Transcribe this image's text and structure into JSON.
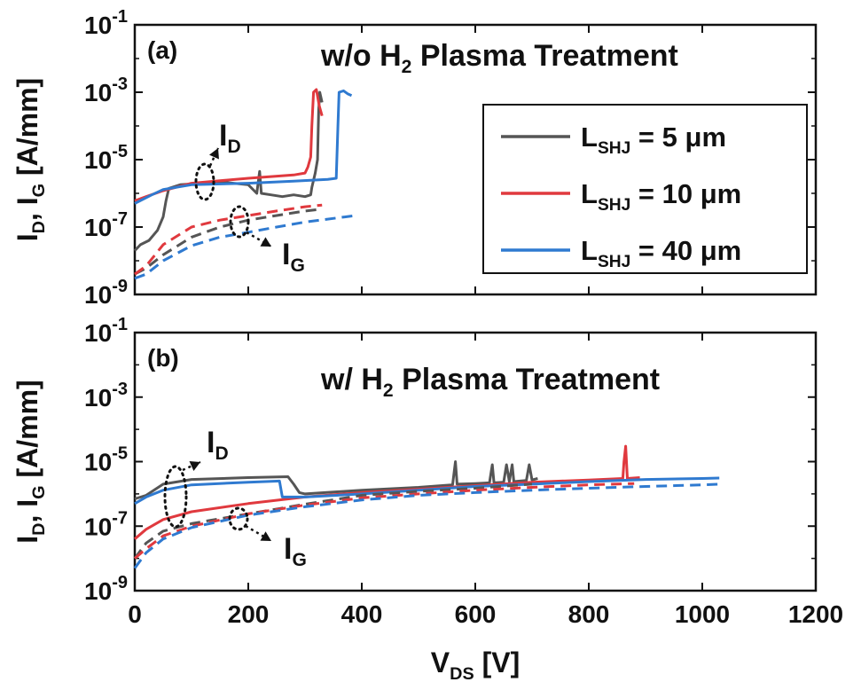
{
  "figure": {
    "x_label": {
      "main": "V",
      "sub": "DS",
      "rest": " [V]"
    },
    "y_label": [
      {
        "text": "I",
        "sub": false
      },
      {
        "text": "D",
        "sub": true
      },
      {
        "text": ", I",
        "sub": false
      },
      {
        "text": "G",
        "sub": true
      },
      {
        "text": " [A/mm]",
        "sub": false
      }
    ],
    "ytick_base": "10",
    "id_marker": {
      "main": "I",
      "sub": "D"
    },
    "ig_marker": {
      "main": "I",
      "sub": "G"
    },
    "legend_symbol": {
      "main": "L",
      "sub": "SHJ",
      "unit": "μm"
    }
  },
  "chart_data": [
    {
      "type": "line",
      "panel_label": "(a)",
      "title_parts": [
        "w/o H",
        "2",
        " Plasma Treatment"
      ],
      "xlim": [
        0,
        1200
      ],
      "ylim": [
        1e-09,
        0.1
      ],
      "yscale": "log",
      "xticks": [
        0,
        200,
        400,
        600,
        800,
        1000,
        1200
      ],
      "show_xtick_labels": false,
      "yticks": [
        {
          "value": 1e-09,
          "exp": "-9"
        },
        {
          "value": 1e-07,
          "exp": "-7"
        },
        {
          "value": 1e-05,
          "exp": "-5"
        },
        {
          "value": 0.001,
          "exp": "-3"
        },
        {
          "value": 0.1,
          "exp": "-1"
        }
      ],
      "legend": {
        "placement": "right",
        "entries": [
          {
            "value": "5",
            "color": "#555555"
          },
          {
            "value": "10",
            "color": "#e0393e"
          },
          {
            "value": "40",
            "color": "#2f7ad0"
          }
        ]
      },
      "series": [
        {
          "name": "I_D, L_SHJ = 5 μm",
          "color": "#555555",
          "style": "solid",
          "points": [
            [
              0,
              2e-08
            ],
            [
              10,
              3e-08
            ],
            [
              25,
              4e-08
            ],
            [
              40,
              8e-08
            ],
            [
              50,
              2e-07
            ],
            [
              55,
              6e-07
            ],
            [
              60,
              1.4e-06
            ],
            [
              80,
              1.8e-06
            ],
            [
              120,
              2e-06
            ],
            [
              160,
              2.1e-06
            ],
            [
              200,
              1.8e-06
            ],
            [
              215,
              1e-06
            ],
            [
              220,
              4.5e-06
            ],
            [
              223,
              1e-06
            ],
            [
              240,
              9e-07
            ],
            [
              260,
              8e-07
            ],
            [
              280,
              9e-07
            ],
            [
              300,
              8e-07
            ],
            [
              310,
              9e-07
            ],
            [
              312,
              1.5e-06
            ],
            [
              318,
              4e-06
            ],
            [
              322,
              1e-05
            ],
            [
              324,
              0.0003
            ],
            [
              326,
              0.001
            ],
            [
              330,
              0.0005
            ]
          ]
        },
        {
          "name": "I_D, L_SHJ = 10 μm",
          "color": "#e0393e",
          "style": "solid",
          "points": [
            [
              0,
              6e-07
            ],
            [
              20,
              8e-07
            ],
            [
              50,
              1.2e-06
            ],
            [
              100,
              2e-06
            ],
            [
              200,
              2.8e-06
            ],
            [
              280,
              3.5e-06
            ],
            [
              300,
              4e-06
            ],
            [
              305,
              6e-06
            ],
            [
              310,
              1.2e-05
            ],
            [
              312,
              0.0001
            ],
            [
              315,
              0.001
            ],
            [
              320,
              0.0012
            ],
            [
              325,
              0.0004
            ],
            [
              330,
              0.0002
            ]
          ]
        },
        {
          "name": "I_D, L_SHJ = 40 μm",
          "color": "#2f7ad0",
          "style": "solid",
          "points": [
            [
              0,
              5e-07
            ],
            [
              30,
              9e-07
            ],
            [
              50,
              1.3e-06
            ],
            [
              100,
              1.8e-06
            ],
            [
              200,
              2e-06
            ],
            [
              280,
              2.3e-06
            ],
            [
              340,
              2.6e-06
            ],
            [
              355,
              2.8e-06
            ],
            [
              358,
              0.0001
            ],
            [
              360,
              0.001
            ],
            [
              368,
              0.0011
            ],
            [
              375,
              0.0009
            ],
            [
              382,
              0.0008
            ]
          ]
        },
        {
          "name": "I_G, L_SHJ = 5 μm",
          "color": "#555555",
          "style": "dashed",
          "points": [
            [
              0,
              4e-09
            ],
            [
              20,
              6e-09
            ],
            [
              50,
              1.5e-08
            ],
            [
              100,
              5e-08
            ],
            [
              150,
              1e-07
            ],
            [
              200,
              1.6e-07
            ],
            [
              250,
              2.2e-07
            ],
            [
              300,
              3e-07
            ],
            [
              330,
              3.4e-07
            ]
          ]
        },
        {
          "name": "I_G, L_SHJ = 10 μm",
          "color": "#e0393e",
          "style": "dashed",
          "points": [
            [
              0,
              4e-09
            ],
            [
              20,
              7e-09
            ],
            [
              50,
              3e-08
            ],
            [
              100,
              1e-07
            ],
            [
              150,
              1.6e-07
            ],
            [
              200,
              2.2e-07
            ],
            [
              250,
              3e-07
            ],
            [
              300,
              4e-07
            ],
            [
              330,
              4.5e-07
            ]
          ]
        },
        {
          "name": "I_G, L_SHJ = 40 μm",
          "color": "#2f7ad0",
          "style": "dashed",
          "points": [
            [
              0,
              3e-09
            ],
            [
              20,
              4e-09
            ],
            [
              50,
              1e-08
            ],
            [
              100,
              2.8e-08
            ],
            [
              150,
              5e-08
            ],
            [
              200,
              7e-08
            ],
            [
              250,
              1e-07
            ],
            [
              300,
              1.4e-07
            ],
            [
              370,
              2e-07
            ],
            [
              390,
              2.2e-07
            ]
          ]
        }
      ]
    },
    {
      "type": "line",
      "panel_label": "(b)",
      "title_parts": [
        "w/ H",
        "2",
        " Plasma Treatment"
      ],
      "xlim": [
        0,
        1200
      ],
      "ylim": [
        1e-09,
        0.1
      ],
      "yscale": "log",
      "xticks": [
        0,
        200,
        400,
        600,
        800,
        1000,
        1200
      ],
      "show_xtick_labels": true,
      "yticks": [
        {
          "value": 1e-09,
          "exp": "-9"
        },
        {
          "value": 1e-07,
          "exp": "-7"
        },
        {
          "value": 1e-05,
          "exp": "-5"
        },
        {
          "value": 0.001,
          "exp": "-3"
        },
        {
          "value": 0.1,
          "exp": "-1"
        }
      ],
      "series": [
        {
          "name": "I_D, L_SHJ = 5 μm",
          "color": "#555555",
          "style": "solid",
          "points": [
            [
              0,
              7e-07
            ],
            [
              20,
              9e-07
            ],
            [
              50,
              2e-06
            ],
            [
              100,
              2.8e-06
            ],
            [
              200,
              3.2e-06
            ],
            [
              270,
              3.4e-06
            ],
            [
              280,
              2e-06
            ],
            [
              290,
              1.1e-06
            ],
            [
              300,
              1e-06
            ],
            [
              400,
              1.3e-06
            ],
            [
              500,
              1.6e-06
            ],
            [
              560,
              1.9e-06
            ],
            [
              565,
              1e-05
            ],
            [
              568,
              2e-06
            ],
            [
              600,
              2.1e-06
            ],
            [
              625,
              2.2e-06
            ],
            [
              630,
              8e-06
            ],
            [
              633,
              2.2e-06
            ],
            [
              650,
              2.3e-06
            ],
            [
              655,
              8e-06
            ],
            [
              660,
              2.4e-06
            ],
            [
              665,
              8e-06
            ],
            [
              668,
              2.4e-06
            ],
            [
              690,
              2.6e-06
            ],
            [
              695,
              8e-06
            ],
            [
              700,
              2.7e-06
            ],
            [
              710,
              3e-06
            ]
          ]
        },
        {
          "name": "I_D, L_SHJ = 10 μm",
          "color": "#e0393e",
          "style": "solid",
          "points": [
            [
              0,
              4e-08
            ],
            [
              20,
              8e-08
            ],
            [
              50,
              1.6e-07
            ],
            [
              100,
              2.8e-07
            ],
            [
              200,
              5e-07
            ],
            [
              300,
              8e-07
            ],
            [
              400,
              1.1e-06
            ],
            [
              500,
              1.4e-06
            ],
            [
              600,
              1.8e-06
            ],
            [
              700,
              2.3e-06
            ],
            [
              800,
              2.7e-06
            ],
            [
              860,
              3e-06
            ],
            [
              862,
              1e-05
            ],
            [
              865,
              3e-05
            ],
            [
              868,
              3e-06
            ],
            [
              890,
              3.2e-06
            ]
          ]
        },
        {
          "name": "I_D, L_SHJ = 40 μm",
          "color": "#2f7ad0",
          "style": "solid",
          "points": [
            [
              0,
              5e-07
            ],
            [
              20,
              8e-07
            ],
            [
              50,
              1.3e-06
            ],
            [
              100,
              1.9e-06
            ],
            [
              200,
              2.3e-06
            ],
            [
              255,
              2.5e-06
            ],
            [
              260,
              8e-07
            ],
            [
              300,
              8e-07
            ],
            [
              400,
              1e-06
            ],
            [
              500,
              1.3e-06
            ],
            [
              600,
              1.7e-06
            ],
            [
              700,
              2e-06
            ],
            [
              800,
              2.4e-06
            ],
            [
              900,
              2.8e-06
            ],
            [
              1000,
              3e-06
            ],
            [
              1030,
              3.1e-06
            ]
          ]
        },
        {
          "name": "I_G, L_SHJ = 5 μm",
          "color": "#555555",
          "style": "dashed",
          "points": [
            [
              0,
              1e-08
            ],
            [
              20,
              3e-08
            ],
            [
              50,
              7e-08
            ],
            [
              100,
              1.2e-07
            ],
            [
              200,
              2.4e-07
            ],
            [
              300,
              4.8e-07
            ],
            [
              400,
              9e-07
            ],
            [
              500,
              1.2e-06
            ],
            [
              600,
              1.5e-06
            ],
            [
              700,
              2e-06
            ]
          ]
        },
        {
          "name": "I_G, L_SHJ = 10 μm",
          "color": "#e0393e",
          "style": "dashed",
          "points": [
            [
              0,
              1e-08
            ],
            [
              20,
              2e-08
            ],
            [
              50,
              5e-08
            ],
            [
              100,
              1e-07
            ],
            [
              200,
              2.4e-07
            ],
            [
              300,
              4.5e-07
            ],
            [
              400,
              7.5e-07
            ],
            [
              500,
              1e-06
            ],
            [
              600,
              1.3e-06
            ],
            [
              700,
              1.6e-06
            ],
            [
              800,
              1.9e-06
            ],
            [
              880,
              2.1e-06
            ]
          ]
        },
        {
          "name": "I_G, L_SHJ = 40 μm",
          "color": "#2f7ad0",
          "style": "dashed",
          "points": [
            [
              0,
              5e-09
            ],
            [
              20,
              1.5e-08
            ],
            [
              50,
              4e-08
            ],
            [
              100,
              9e-08
            ],
            [
              200,
              2.2e-07
            ],
            [
              300,
              4e-07
            ],
            [
              400,
              6.5e-07
            ],
            [
              500,
              9e-07
            ],
            [
              600,
              1.1e-06
            ],
            [
              700,
              1.3e-06
            ],
            [
              800,
              1.5e-06
            ],
            [
              900,
              1.7e-06
            ],
            [
              1000,
              1.9e-06
            ],
            [
              1030,
              2e-06
            ]
          ]
        }
      ]
    }
  ]
}
